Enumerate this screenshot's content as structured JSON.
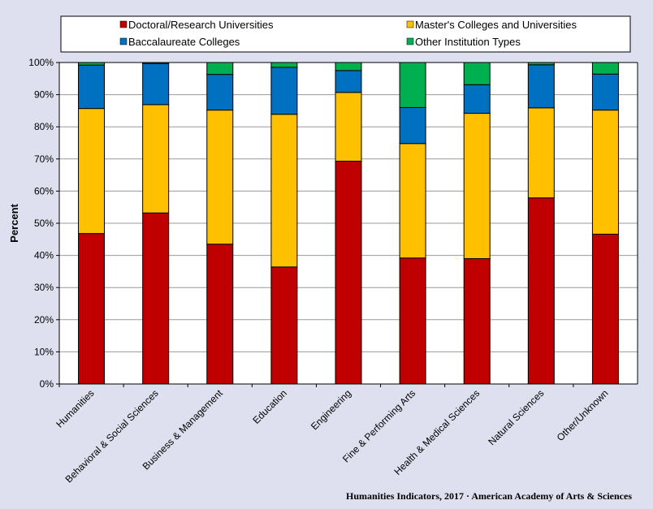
{
  "chart_data": {
    "type": "bar",
    "stacked": true,
    "orientation": "vertical",
    "ylabel": "Percent",
    "xlabel": "",
    "ylim": [
      0,
      100
    ],
    "y_ticks": [
      "0%",
      "10%",
      "20%",
      "30%",
      "40%",
      "50%",
      "60%",
      "70%",
      "80%",
      "90%",
      "100%"
    ],
    "grid": true,
    "legend_position": "top",
    "categories": [
      "Humanities",
      "Behavioral & Social Sciences",
      "Business & Management",
      "Education",
      "Engineering",
      "Fine & Performing Arts",
      "Health & Medical Sciences",
      "Natural Sciences",
      "Other/Unknown"
    ],
    "series": [
      {
        "name": "Doctoral/Research Universities",
        "color": "#c00000",
        "values": [
          46.8,
          53.2,
          43.5,
          36.4,
          69.3,
          39.2,
          39.0,
          57.9,
          46.6
        ]
      },
      {
        "name": "Master's Colleges and Universities",
        "color": "#ffc000",
        "values": [
          38.9,
          33.7,
          41.7,
          47.5,
          21.4,
          35.6,
          45.2,
          28.0,
          38.6
        ]
      },
      {
        "name": "Baccalaureate Colleges",
        "color": "#0070c0",
        "values": [
          13.5,
          12.8,
          11.1,
          14.6,
          6.8,
          11.2,
          8.9,
          13.4,
          11.2
        ]
      },
      {
        "name": "Other Institution Types",
        "color": "#00b050",
        "values": [
          0.8,
          0.3,
          3.7,
          1.5,
          2.5,
          14.0,
          6.9,
          0.7,
          3.6
        ]
      }
    ],
    "source": "Humanities  Indicators, 2017 · American Academy of Arts & Sciences"
  }
}
